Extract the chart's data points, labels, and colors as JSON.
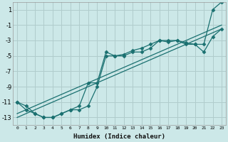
{
  "title": "",
  "xlabel": "Humidex (Indice chaleur)",
  "ylabel": "",
  "background_color": "#cce8e8",
  "grid_color": "#b0cccc",
  "line_color": "#1a7070",
  "xlim": [
    -0.5,
    23.5
  ],
  "ylim": [
    -14,
    2
  ],
  "xtick_labels": [
    "0",
    "1",
    "2",
    "3",
    "4",
    "5",
    "6",
    "7",
    "8",
    "9",
    "10",
    "11",
    "12",
    "13",
    "14",
    "15",
    "16",
    "17",
    "18",
    "19",
    "20",
    "21",
    "22",
    "23"
  ],
  "xtick_vals": [
    0,
    1,
    2,
    3,
    4,
    5,
    6,
    7,
    8,
    9,
    10,
    11,
    12,
    13,
    14,
    15,
    16,
    17,
    18,
    19,
    20,
    21,
    22,
    23
  ],
  "yticks": [
    1,
    -1,
    -3,
    -5,
    -7,
    -9,
    -11,
    -13
  ],
  "series1_x": [
    0,
    1,
    2,
    3,
    4,
    5,
    6,
    7,
    8,
    9,
    10,
    11,
    12,
    13,
    14,
    15,
    16,
    17,
    18,
    19,
    20,
    21,
    22,
    23
  ],
  "series1_y": [
    -11,
    -11.5,
    -12.5,
    -13,
    -13,
    -12.5,
    -12,
    -11.5,
    -8.5,
    -8.5,
    -4.5,
    -5,
    -4.8,
    -4.3,
    -4,
    -3.5,
    -3,
    -3,
    -3,
    -3.3,
    -3.5,
    -3.5,
    1,
    2
  ],
  "series2_x": [
    0,
    1,
    2,
    3,
    4,
    5,
    6,
    7,
    8,
    9,
    10,
    11,
    12,
    13,
    14,
    15,
    16,
    17,
    18,
    19,
    20,
    21,
    22,
    23
  ],
  "series2_y": [
    -11,
    -12,
    -12.5,
    -13,
    -13,
    -12.5,
    -12,
    -12,
    -11.5,
    -9,
    -5,
    -5,
    -5,
    -4.5,
    -4.5,
    -4,
    -3,
    -3.2,
    -3,
    -3.5,
    -3.5,
    -4.5,
    -2.5,
    -1.5
  ],
  "line3_x": [
    0,
    23
  ],
  "line3_y": [
    -13,
    -1.5
  ],
  "line4_x": [
    0,
    23
  ],
  "line4_y": [
    -12.5,
    -1
  ],
  "marker": "D",
  "markersize": 2.5,
  "linewidth": 0.9
}
